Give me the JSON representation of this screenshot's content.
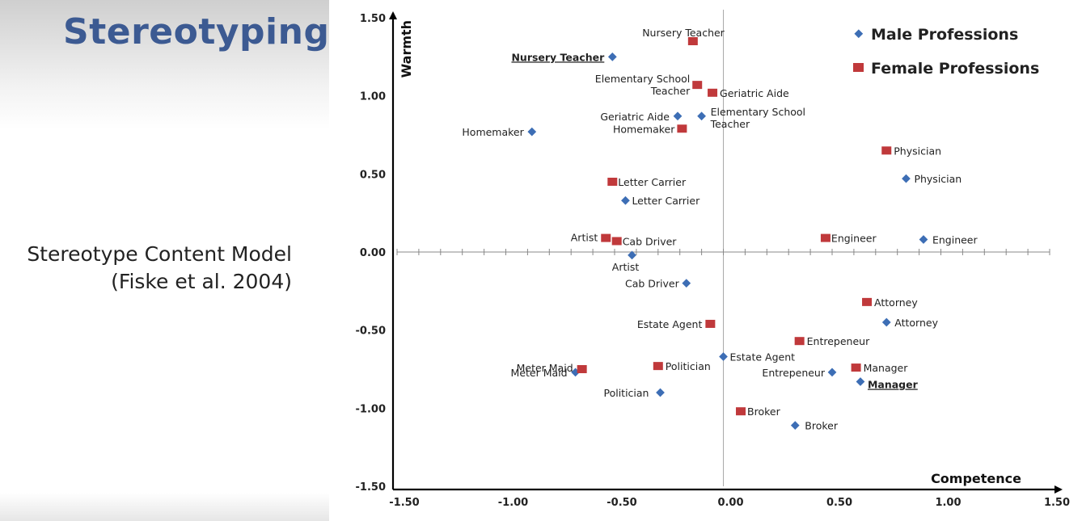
{
  "slide": {
    "title": "Stereotyping",
    "subtitle_line1": "Stereotype Content Model",
    "subtitle_line2": "(Fiske et al. 2004)"
  },
  "colors": {
    "title": "#3c5a92",
    "male": "#3d6eb5",
    "female": "#c0393b"
  },
  "chart_data": {
    "type": "scatter",
    "xlabel": "Competence",
    "ylabel": "Warmth",
    "xlim": [
      -1.5,
      1.5
    ],
    "ylim": [
      -1.5,
      1.5
    ],
    "xticks": [
      "-1.50",
      "-1.00",
      "-0.50",
      "0.00",
      "0.50",
      "1.00",
      "1.50"
    ],
    "yticks": [
      "1.50",
      "1.00",
      "0.50",
      "0.00",
      "-0.50",
      "-1.00",
      "-1.50"
    ],
    "legend_position": "top-right",
    "series": [
      {
        "name": "Male Professions",
        "marker": "diamond",
        "points": [
          {
            "label": "Nursery Teacher",
            "x": -0.51,
            "y": 1.25,
            "emphasis": true,
            "lines": [
              "Nursery Teacher"
            ]
          },
          {
            "label": "Homemaker",
            "x": -0.88,
            "y": 0.77,
            "lines": [
              "Homemaker"
            ]
          },
          {
            "label": "Geriatric Aide",
            "x": -0.21,
            "y": 0.87,
            "lines": [
              "Geriatric Aide"
            ]
          },
          {
            "label": "Elementary School Teacher",
            "x": -0.1,
            "y": 0.87,
            "lines": [
              "Elementary School",
              "Teacher"
            ]
          },
          {
            "label": "Physician",
            "x": 0.84,
            "y": 0.47,
            "lines": [
              "Physician"
            ]
          },
          {
            "label": "Letter Carrier",
            "x": -0.45,
            "y": 0.33,
            "lines": [
              "Letter Carrier"
            ]
          },
          {
            "label": "Engineer",
            "x": 0.92,
            "y": 0.08,
            "lines": [
              "Engineer"
            ]
          },
          {
            "label": "Artist",
            "x": -0.42,
            "y": -0.02,
            "lines": [
              "Artist"
            ]
          },
          {
            "label": "Cab Driver",
            "x": -0.17,
            "y": -0.2,
            "lines": [
              "Cab Driver"
            ]
          },
          {
            "label": "Attorney",
            "x": 0.75,
            "y": -0.45,
            "lines": [
              "Attorney"
            ]
          },
          {
            "label": "Estate Agent",
            "x": 0.0,
            "y": -0.67,
            "lines": [
              "Estate Agent"
            ]
          },
          {
            "label": "Entrepeneur",
            "x": 0.5,
            "y": -0.77,
            "lines": [
              "Entrepeneur"
            ]
          },
          {
            "label": "Manager",
            "x": 0.63,
            "y": -0.83,
            "emphasis": true,
            "lines": [
              "Manager"
            ]
          },
          {
            "label": "Meter Maid",
            "x": -0.68,
            "y": -0.77,
            "lines": [
              "Meter Maid"
            ]
          },
          {
            "label": "Politician",
            "x": -0.29,
            "y": -0.9,
            "lines": [
              "Politician"
            ]
          },
          {
            "label": "Broker",
            "x": 0.33,
            "y": -1.11,
            "lines": [
              "Broker"
            ]
          }
        ]
      },
      {
        "name": "Female Professions",
        "marker": "square",
        "points": [
          {
            "label": "Nursery Teacher",
            "x": -0.14,
            "y": 1.35,
            "lines": [
              "Nursery Teacher"
            ]
          },
          {
            "label": "Elementary School Teacher",
            "x": -0.12,
            "y": 1.07,
            "lines": [
              "Elementary School",
              "Teacher"
            ]
          },
          {
            "label": "Geriatric Aide",
            "x": -0.05,
            "y": 1.02,
            "lines": [
              "Geriatric Aide"
            ]
          },
          {
            "label": "Homemaker",
            "x": -0.19,
            "y": 0.79,
            "lines": [
              "Homemaker"
            ]
          },
          {
            "label": "Physician",
            "x": 0.75,
            "y": 0.65,
            "lines": [
              "Physician"
            ]
          },
          {
            "label": "Letter Carrier",
            "x": -0.51,
            "y": 0.45,
            "lines": [
              "Letter Carrier"
            ]
          },
          {
            "label": "Engineer",
            "x": 0.47,
            "y": 0.09,
            "lines": [
              "Engineer"
            ]
          },
          {
            "label": "Artist",
            "x": -0.54,
            "y": 0.09,
            "lines": [
              "Artist"
            ]
          },
          {
            "label": "Cab Driver",
            "x": -0.49,
            "y": 0.07,
            "lines": [
              "Cab Driver"
            ]
          },
          {
            "label": "Attorney",
            "x": 0.66,
            "y": -0.32,
            "lines": [
              "Attorney"
            ]
          },
          {
            "label": "Estate Agent",
            "x": -0.06,
            "y": -0.46,
            "lines": [
              "Estate Agent"
            ]
          },
          {
            "label": "Entrepeneur",
            "x": 0.35,
            "y": -0.57,
            "lines": [
              "Entrepeneur"
            ]
          },
          {
            "label": "Manager",
            "x": 0.61,
            "y": -0.74,
            "lines": [
              "Manager"
            ]
          },
          {
            "label": "Meter Maid",
            "x": -0.65,
            "y": -0.75,
            "lines": [
              "Meter Maid"
            ]
          },
          {
            "label": "Politician",
            "x": -0.3,
            "y": -0.73,
            "lines": [
              "Politician"
            ]
          },
          {
            "label": "Broker",
            "x": 0.08,
            "y": -1.02,
            "lines": [
              "Broker"
            ]
          }
        ]
      }
    ]
  }
}
